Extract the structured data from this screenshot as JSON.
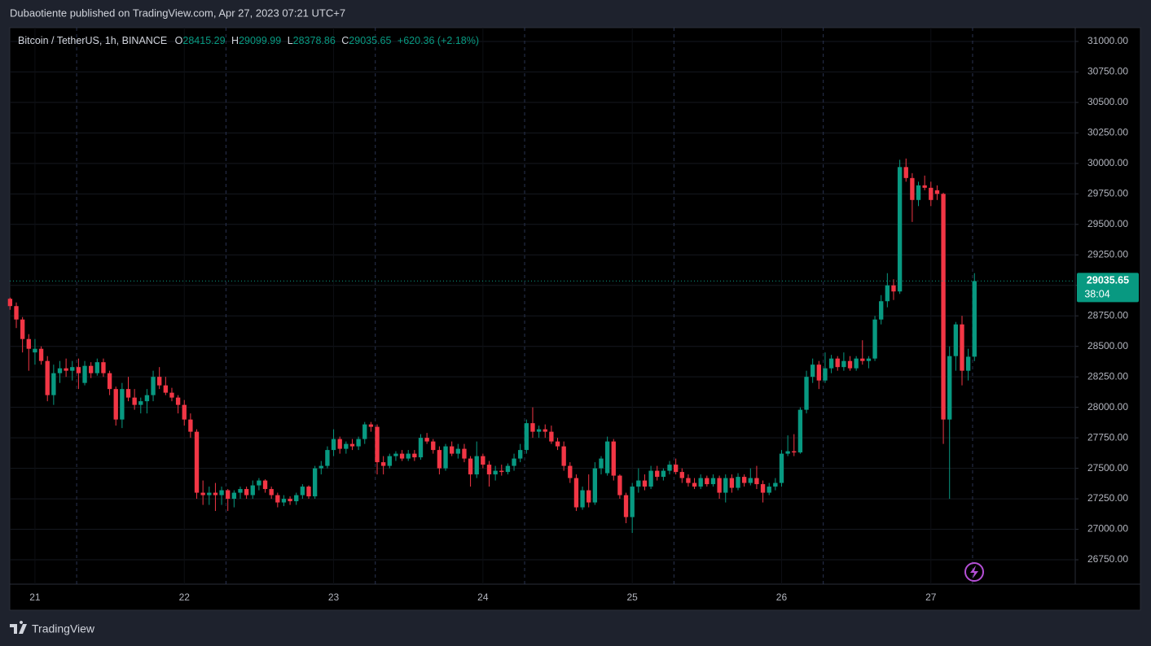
{
  "header": {
    "published": "Dubaotiente published on TradingView.com, Apr 27, 2023 07:21 UTC+7"
  },
  "footer": {
    "brand": "TradingView"
  },
  "chart_data": {
    "type": "candlestick",
    "symbol": "Bitcoin / TetherUS, 1h, BINANCE",
    "legend_labels": [
      "O",
      "H",
      "L",
      "C"
    ],
    "change": "+620.36 (+2.18%)",
    "countdown": "38:04",
    "up_color": "#089981",
    "down_color": "#f23645",
    "grid": true,
    "ylim": [
      26550,
      31113
    ],
    "yticks": [
      {
        "value": 26750,
        "label": "26750.00"
      },
      {
        "value": 27000,
        "label": "27000.00"
      },
      {
        "value": 27250,
        "label": "27250.00"
      },
      {
        "value": 27500,
        "label": "27500.00"
      },
      {
        "value": 27750,
        "label": "27750.00"
      },
      {
        "value": 28000,
        "label": "28000.00"
      },
      {
        "value": 28250,
        "label": "28250.00"
      },
      {
        "value": 28500,
        "label": "28500.00"
      },
      {
        "value": 28750,
        "label": "28750.00"
      },
      {
        "value": 29000,
        "label": "29000.00"
      },
      {
        "value": 29250,
        "label": "29250.00"
      },
      {
        "value": 29500,
        "label": "29500.00"
      },
      {
        "value": 29750,
        "label": "29750.00"
      },
      {
        "value": 30000,
        "label": "30000.00"
      },
      {
        "value": 30250,
        "label": "30250.00"
      },
      {
        "value": 30500,
        "label": "30500.00"
      },
      {
        "value": 30750,
        "label": "30750.00"
      },
      {
        "value": 31000,
        "label": "31000.00"
      }
    ],
    "xlim": [
      -0.05,
      171.2
    ],
    "xticks": [
      {
        "value": 4,
        "label": "21"
      },
      {
        "value": 28,
        "label": "22"
      },
      {
        "value": 52,
        "label": "23"
      },
      {
        "value": 76,
        "label": "24"
      },
      {
        "value": 100,
        "label": "25"
      },
      {
        "value": 124,
        "label": "26"
      },
      {
        "value": 148,
        "label": "27"
      }
    ],
    "session_lines": [
      10.7,
      34.7,
      58.7,
      82.7,
      106.7,
      130.7,
      154.7
    ],
    "ohlc": [
      [
        28890,
        28900,
        28800,
        28830
      ],
      [
        28830,
        28860,
        28650,
        28720
      ],
      [
        28720,
        28740,
        28450,
        28560
      ],
      [
        28560,
        28600,
        28300,
        28480
      ],
      [
        28450,
        28560,
        28350,
        28480
      ],
      [
        28480,
        28500,
        28350,
        28380
      ],
      [
        28380,
        28420,
        28050,
        28100
      ],
      [
        28100,
        28350,
        28020,
        28280
      ],
      [
        28280,
        28380,
        28200,
        28320
      ],
      [
        28320,
        28400,
        28250,
        28300
      ],
      [
        28300,
        28380,
        28220,
        28330
      ],
      [
        28330,
        28400,
        28150,
        28280
      ],
      [
        28200,
        28380,
        28180,
        28340
      ],
      [
        28340,
        28370,
        28240,
        28280
      ],
      [
        28280,
        28400,
        28260,
        28370
      ],
      [
        28370,
        28400,
        28250,
        28280
      ],
      [
        28280,
        28300,
        28100,
        28150
      ],
      [
        28150,
        28170,
        27850,
        27900
      ],
      [
        27900,
        28200,
        27830,
        28150
      ],
      [
        28150,
        28250,
        28050,
        28080
      ],
      [
        28080,
        28150,
        27980,
        28020
      ],
      [
        28020,
        28080,
        27950,
        28050
      ],
      [
        28050,
        28150,
        27950,
        28100
      ],
      [
        28100,
        28300,
        28050,
        28250
      ],
      [
        28250,
        28330,
        28150,
        28180
      ],
      [
        28180,
        28250,
        28100,
        28120
      ],
      [
        28120,
        28160,
        28050,
        28080
      ],
      [
        28080,
        28100,
        27950,
        28020
      ],
      [
        28020,
        28060,
        27850,
        27900
      ],
      [
        27900,
        27950,
        27750,
        27800
      ],
      [
        27800,
        27820,
        27250,
        27300
      ],
      [
        27300,
        27400,
        27200,
        27280
      ],
      [
        27280,
        27350,
        27200,
        27300
      ],
      [
        27300,
        27380,
        27150,
        27280
      ],
      [
        27280,
        27350,
        27200,
        27320
      ],
      [
        27320,
        27330,
        27150,
        27250
      ],
      [
        27250,
        27320,
        27180,
        27300
      ],
      [
        27300,
        27350,
        27250,
        27330
      ],
      [
        27330,
        27350,
        27250,
        27280
      ],
      [
        27280,
        27400,
        27250,
        27360
      ],
      [
        27360,
        27420,
        27320,
        27400
      ],
      [
        27400,
        27410,
        27300,
        27330
      ],
      [
        27330,
        27350,
        27250,
        27280
      ],
      [
        27280,
        27300,
        27180,
        27220
      ],
      [
        27220,
        27280,
        27190,
        27250
      ],
      [
        27250,
        27270,
        27200,
        27230
      ],
      [
        27230,
        27300,
        27200,
        27280
      ],
      [
        27280,
        27370,
        27250,
        27350
      ],
      [
        27350,
        27360,
        27250,
        27270
      ],
      [
        27270,
        27520,
        27250,
        27500
      ],
      [
        27500,
        27560,
        27450,
        27520
      ],
      [
        27520,
        27680,
        27500,
        27650
      ],
      [
        27650,
        27820,
        27600,
        27740
      ],
      [
        27740,
        27760,
        27620,
        27660
      ],
      [
        27660,
        27720,
        27620,
        27700
      ],
      [
        27700,
        27740,
        27650,
        27680
      ],
      [
        27680,
        27760,
        27650,
        27740
      ],
      [
        27740,
        27880,
        27700,
        27860
      ],
      [
        27860,
        27880,
        27800,
        27840
      ],
      [
        27840,
        27860,
        27450,
        27550
      ],
      [
        27550,
        27600,
        27450,
        27520
      ],
      [
        27520,
        27620,
        27500,
        27600
      ],
      [
        27600,
        27640,
        27560,
        27620
      ],
      [
        27620,
        27650,
        27560,
        27580
      ],
      [
        27580,
        27650,
        27560,
        27620
      ],
      [
        27620,
        27650,
        27560,
        27590
      ],
      [
        27590,
        27780,
        27570,
        27750
      ],
      [
        27750,
        27790,
        27700,
        27720
      ],
      [
        27720,
        27740,
        27620,
        27650
      ],
      [
        27650,
        27680,
        27450,
        27500
      ],
      [
        27500,
        27700,
        27480,
        27680
      ],
      [
        27680,
        27720,
        27600,
        27620
      ],
      [
        27620,
        27700,
        27580,
        27660
      ],
      [
        27660,
        27700,
        27550,
        27580
      ],
      [
        27580,
        27600,
        27350,
        27450
      ],
      [
        27450,
        27720,
        27420,
        27600
      ],
      [
        27600,
        27620,
        27500,
        27530
      ],
      [
        27530,
        27560,
        27350,
        27450
      ],
      [
        27450,
        27520,
        27400,
        27480
      ],
      [
        27480,
        27530,
        27440,
        27470
      ],
      [
        27470,
        27540,
        27450,
        27520
      ],
      [
        27520,
        27620,
        27480,
        27580
      ],
      [
        27580,
        27700,
        27550,
        27650
      ],
      [
        27650,
        27900,
        27620,
        27870
      ],
      [
        27870,
        28000,
        27750,
        27800
      ],
      [
        27800,
        27850,
        27750,
        27820
      ],
      [
        27820,
        27860,
        27750,
        27800
      ],
      [
        27800,
        27850,
        27700,
        27720
      ],
      [
        27720,
        27750,
        27650,
        27680
      ],
      [
        27680,
        27720,
        27480,
        27520
      ],
      [
        27520,
        27550,
        27380,
        27420
      ],
      [
        27420,
        27450,
        27150,
        27180
      ],
      [
        27180,
        27350,
        27160,
        27320
      ],
      [
        27320,
        27450,
        27180,
        27220
      ],
      [
        27220,
        27550,
        27200,
        27500
      ],
      [
        27500,
        27600,
        27450,
        27580
      ],
      [
        27460,
        27760,
        27440,
        27720
      ],
      [
        27720,
        27740,
        27400,
        27440
      ],
      [
        27440,
        27450,
        27250,
        27280
      ],
      [
        27280,
        27300,
        27050,
        27100
      ],
      [
        27100,
        27380,
        26970,
        27350
      ],
      [
        27350,
        27500,
        27300,
        27400
      ],
      [
        27400,
        27450,
        27320,
        27350
      ],
      [
        27350,
        27520,
        27330,
        27480
      ],
      [
        27480,
        27520,
        27400,
        27430
      ],
      [
        27430,
        27500,
        27400,
        27480
      ],
      [
        27480,
        27560,
        27450,
        27530
      ],
      [
        27530,
        27580,
        27450,
        27470
      ],
      [
        27470,
        27500,
        27380,
        27420
      ],
      [
        27420,
        27450,
        27350,
        27380
      ],
      [
        27380,
        27420,
        27330,
        27350
      ],
      [
        27350,
        27450,
        27330,
        27420
      ],
      [
        27420,
        27440,
        27350,
        27370
      ],
      [
        27370,
        27450,
        27350,
        27420
      ],
      [
        27420,
        27440,
        27250,
        27300
      ],
      [
        27300,
        27450,
        27220,
        27420
      ],
      [
        27420,
        27450,
        27300,
        27340
      ],
      [
        27340,
        27460,
        27320,
        27430
      ],
      [
        27430,
        27450,
        27350,
        27380
      ],
      [
        27380,
        27500,
        27360,
        27420
      ],
      [
        27420,
        27520,
        27330,
        27370
      ],
      [
        27370,
        27400,
        27220,
        27300
      ],
      [
        27300,
        27380,
        27280,
        27350
      ],
      [
        27350,
        27420,
        27320,
        27380
      ],
      [
        27380,
        27650,
        27350,
        27620
      ],
      [
        27620,
        27770,
        27600,
        27640
      ],
      [
        27640,
        27780,
        27600,
        27630
      ],
      [
        27630,
        28000,
        27620,
        27980
      ],
      [
        27980,
        28300,
        27950,
        28250
      ],
      [
        28250,
        28400,
        28200,
        28350
      ],
      [
        28350,
        28380,
        28150,
        28220
      ],
      [
        28220,
        28450,
        28200,
        28320
      ],
      [
        28320,
        28430,
        28280,
        28400
      ],
      [
        28400,
        28420,
        28300,
        28330
      ],
      [
        28330,
        28450,
        28300,
        28380
      ],
      [
        28380,
        28420,
        28300,
        28320
      ],
      [
        28320,
        28420,
        28300,
        28400
      ],
      [
        28400,
        28550,
        28350,
        28380
      ],
      [
        28380,
        28420,
        28320,
        28400
      ],
      [
        28400,
        28750,
        28380,
        28720
      ],
      [
        28720,
        28920,
        28680,
        28870
      ],
      [
        28870,
        29100,
        28820,
        29000
      ],
      [
        29000,
        29050,
        28880,
        28950
      ],
      [
        28950,
        30030,
        28930,
        29970
      ],
      [
        29970,
        30040,
        29850,
        29880
      ],
      [
        29880,
        29920,
        29520,
        29700
      ],
      [
        29700,
        29850,
        29650,
        29820
      ],
      [
        29820,
        29900,
        29780,
        29800
      ],
      [
        29800,
        29850,
        29650,
        29700
      ],
      [
        29780,
        29820,
        29700,
        29750
      ],
      [
        29750,
        29760,
        27700,
        27900
      ],
      [
        27900,
        28500,
        27250,
        28420
      ],
      [
        28420,
        28700,
        28300,
        28680
      ],
      [
        28680,
        28750,
        28180,
        28300
      ],
      [
        28300,
        28480,
        28220,
        28415
      ],
      [
        28415.29,
        29099.99,
        28378.86,
        29035.65
      ]
    ]
  }
}
